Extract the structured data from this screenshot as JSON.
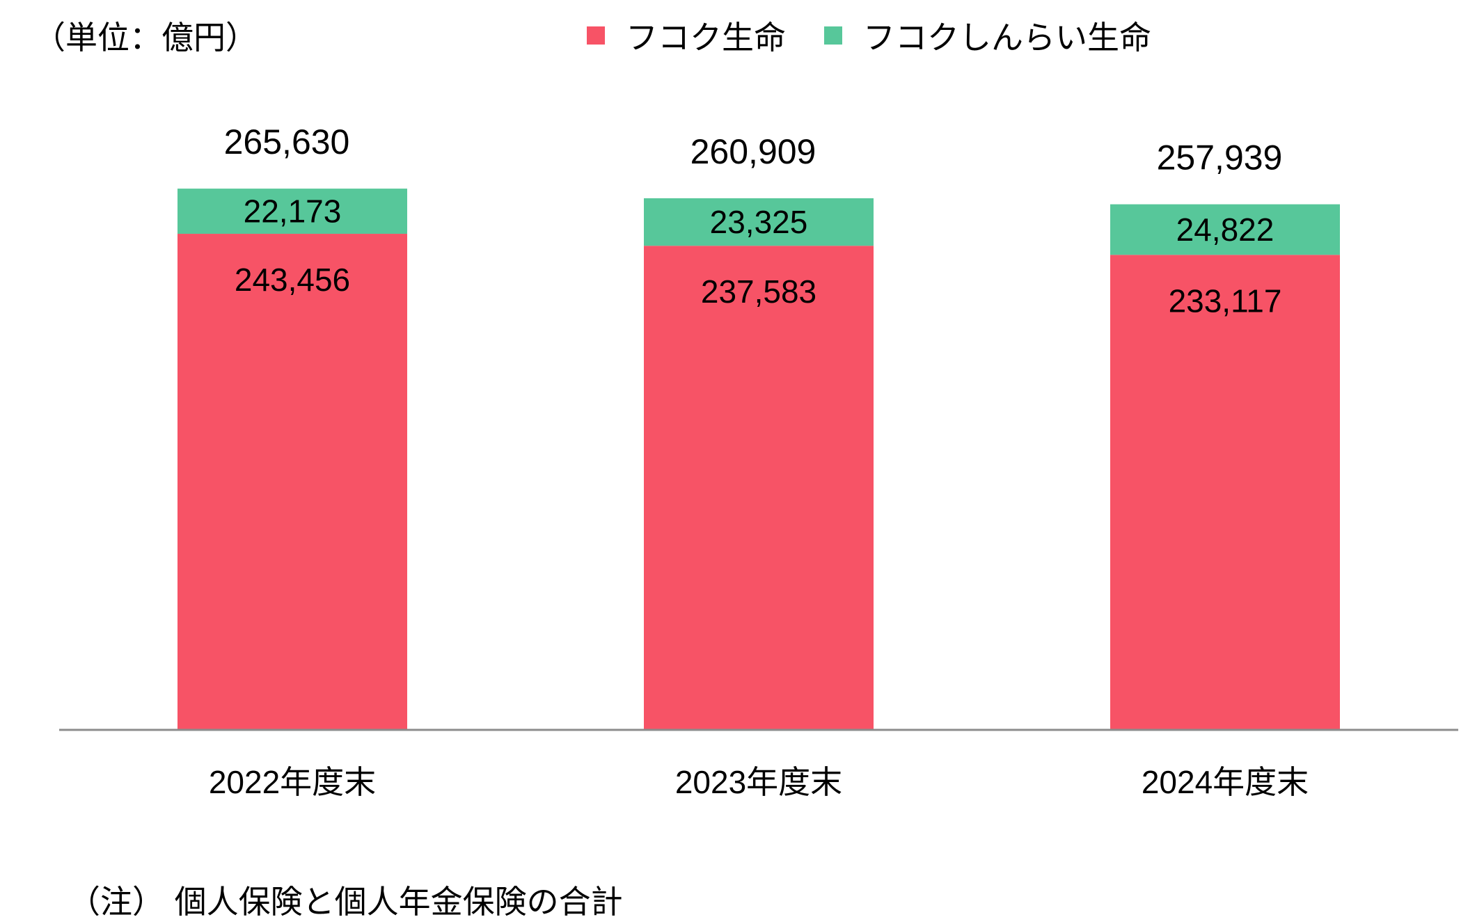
{
  "unit_label": "（単位：億円）",
  "note": "（注） 個人保険と個人年金保険の合計",
  "colors": {
    "fukoku": "#f75366",
    "shinrai": "#57c79a",
    "axis": "#8c8c8c"
  },
  "chart_data": {
    "type": "bar",
    "stacked": true,
    "categories": [
      "2022年度末",
      "2023年度末",
      "2024年度末"
    ],
    "series": [
      {
        "name": "フコク生命",
        "values": [
          243456,
          237583,
          233117
        ]
      },
      {
        "name": "フコクしんらい生命",
        "values": [
          22173,
          23325,
          24822
        ]
      }
    ],
    "totals": [
      265630,
      260909,
      257939
    ],
    "ylim": [
      0,
      280000
    ],
    "grid": false,
    "legend": "top"
  }
}
